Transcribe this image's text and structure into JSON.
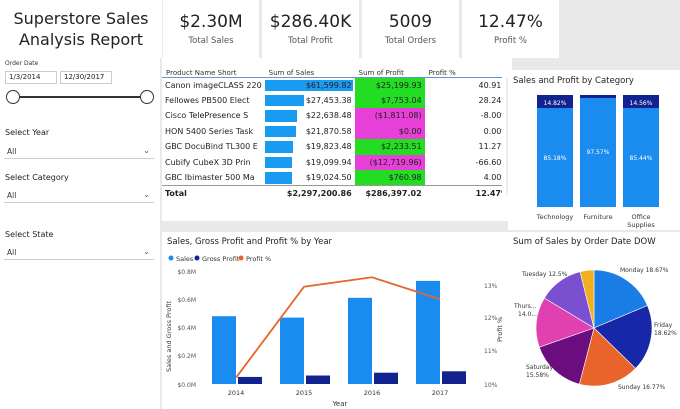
{
  "report": {
    "title_line1": "Superstore Sales",
    "title_line2": "Analysis Report"
  },
  "kpis": [
    {
      "value": "$2.30M",
      "label": "Total Sales"
    },
    {
      "value": "$286.40K",
      "label": "Total Profit"
    },
    {
      "value": "5009",
      "label": "Total Orders"
    },
    {
      "value": "12.47%",
      "label": "Profit %"
    }
  ],
  "filters": {
    "order_date_label": "Order Date",
    "start_date": "1/3/2014",
    "end_date": "12/30/2017",
    "year_label": "Select Year",
    "year_value": "All",
    "category_label": "Select Category",
    "category_value": "All",
    "state_label": "Select State",
    "state_value": "All"
  },
  "table": {
    "headers": [
      "Product Name Short",
      "Sum of Sales",
      "Sum of Profit",
      "Profit %"
    ],
    "rows": [
      {
        "name": "Canon imageCLASS 220",
        "sales": "$61,599.82",
        "sales_frac": 1.0,
        "profit": "$25,199.93",
        "profit_color": "#22dd22",
        "pct": "40.91%"
      },
      {
        "name": "Fellowes PB500 Elect",
        "sales": "$27,453.38",
        "sales_frac": 0.446,
        "profit": "$7,753.04",
        "profit_color": "#22dd22",
        "pct": "28.24%"
      },
      {
        "name": "Cisco TelePresence S",
        "sales": "$22,638.48",
        "sales_frac": 0.368,
        "profit": "($1,811.08)",
        "profit_color": "#e83fd8",
        "pct": "-8.00%"
      },
      {
        "name": "HON 5400 Series Task",
        "sales": "$21,870.58",
        "sales_frac": 0.355,
        "profit": "$0.00",
        "profit_color": "#e83fd8",
        "pct": "0.00%"
      },
      {
        "name": "GBC DocuBind TL300 E",
        "sales": "$19,823.48",
        "sales_frac": 0.322,
        "profit": "$2,233.51",
        "profit_color": "#22dd22",
        "pct": "11.27%"
      },
      {
        "name": "Cubify CubeX 3D Prin",
        "sales": "$19,099.94",
        "sales_frac": 0.31,
        "profit": "($12,719.96)",
        "profit_color": "#e83fd8",
        "pct": "-66.60%"
      },
      {
        "name": "GBC Ibimaster 500 Ma",
        "sales": "$19,024.50",
        "sales_frac": 0.309,
        "profit": "$760.98",
        "profit_color": "#22dd22",
        "pct": "4.00%"
      }
    ],
    "total_label": "Total",
    "total_sales": "$2,297,200.86",
    "total_profit": "$286,397.02",
    "total_pct": "12.47%"
  },
  "category_chart": {
    "title": "Sales and Profit by Category",
    "chart_data": {
      "type": "bar",
      "stacked": true,
      "categories": [
        "Technology",
        "Furniture",
        "Office Supplies"
      ],
      "series": [
        {
          "name": "Sales",
          "values": [
            85.18,
            97.57,
            85.44
          ]
        },
        {
          "name": "Profit",
          "values": [
            14.82,
            2.43,
            14.56
          ]
        }
      ],
      "labels_top": [
        "14.82%",
        "",
        "14.56%"
      ],
      "labels_bottom": [
        "85.18%",
        "97.57%",
        "85.44%"
      ]
    },
    "cat_label_0": "Technology",
    "cat_label_1": "Furniture",
    "cat_label_2a": "Office",
    "cat_label_2b": "Supplies"
  },
  "year_chart": {
    "title": "Sales, Gross Profit and Profit % by Year",
    "legend": [
      "Sales",
      "Gross Profit",
      "Profit %"
    ],
    "ylabel": "Sales and Gross Profit",
    "y2label": "Profit %",
    "xlabel": "Year",
    "yticks": [
      "$0.0M",
      "$0.2M",
      "$0.4M",
      "$0.6M",
      "$0.8M"
    ],
    "y2ticks": [
      "10%",
      "11%",
      "12%",
      "13%"
    ],
    "chart_data": {
      "type": "bar+line",
      "categories": [
        "2014",
        "2015",
        "2016",
        "2017"
      ],
      "series": [
        {
          "name": "Sales",
          "values": [
            0.48,
            0.47,
            0.61,
            0.73
          ]
        },
        {
          "name": "Gross Profit",
          "values": [
            0.05,
            0.06,
            0.08,
            0.09
          ]
        },
        {
          "name": "Profit %",
          "values": [
            10.2,
            13.1,
            13.4,
            12.7
          ]
        }
      ],
      "ylim": [
        0,
        0.8
      ],
      "y2lim": [
        10,
        13.6
      ]
    }
  },
  "dow_chart": {
    "title": "Sum of Sales by Order Date DOW",
    "chart_data": {
      "type": "pie",
      "slices": [
        {
          "label": "Monday 18.67%",
          "value": 18.67,
          "color": "#1a7de6"
        },
        {
          "label": "Friday 18.62%",
          "value": 18.62,
          "color": "#1826a8"
        },
        {
          "label": "Sunday 16.77%",
          "value": 16.77,
          "color": "#e8642b"
        },
        {
          "label": "Saturday 15.58%",
          "value": 15.58,
          "color": "#6b0d7e"
        },
        {
          "label": "Thurs... 14.0...",
          "value": 14.0,
          "color": "#e040b0"
        },
        {
          "label": "Tuesday 12.5%",
          "value": 12.5,
          "color": "#7a4fd0"
        },
        {
          "label": "",
          "value": 3.86,
          "color": "#f0b020"
        }
      ]
    },
    "lbl_monday": "Monday 18.67%",
    "lbl_friday_a": "Friday",
    "lbl_friday_b": "18.62%",
    "lbl_sunday": "Sunday 16.77%",
    "lbl_saturday_a": "Saturday",
    "lbl_saturday_b": "15.58%",
    "lbl_thurs_a": "Thurs...",
    "lbl_thurs_b": "14.0...",
    "lbl_tuesday": "Tuesday 12.5%"
  }
}
